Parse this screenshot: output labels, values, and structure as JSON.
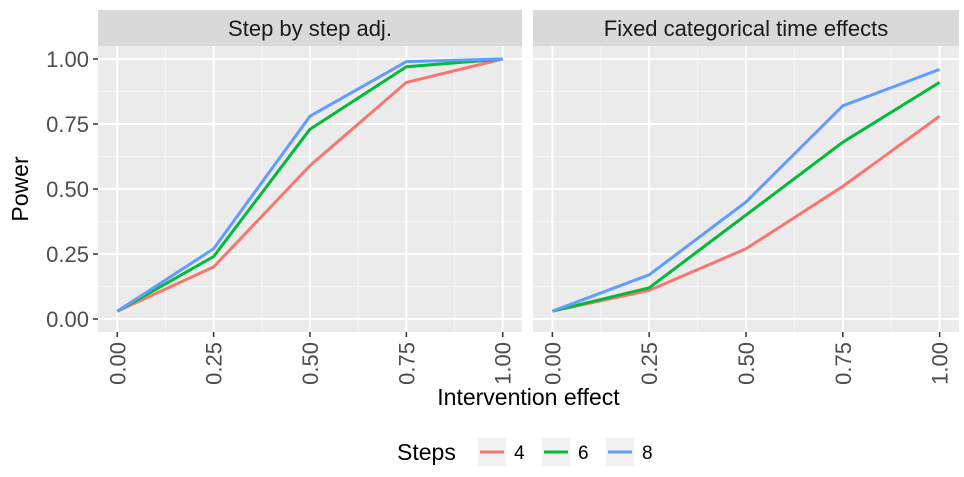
{
  "chart_data": {
    "type": "line",
    "facets": [
      {
        "title": "Step by step adj.",
        "x": [
          0.0,
          0.25,
          0.5,
          0.75,
          1.0
        ],
        "series": [
          {
            "name": "4",
            "values": [
              0.03,
              0.2,
              0.59,
              0.91,
              1.0
            ]
          },
          {
            "name": "6",
            "values": [
              0.03,
              0.24,
              0.73,
              0.97,
              1.0
            ]
          },
          {
            "name": "8",
            "values": [
              0.03,
              0.27,
              0.78,
              0.99,
              1.0
            ]
          }
        ]
      },
      {
        "title": "Fixed categorical time effects",
        "x": [
          0.0,
          0.25,
          0.5,
          0.75,
          1.0
        ],
        "series": [
          {
            "name": "4",
            "values": [
              0.03,
              0.11,
              0.27,
              0.51,
              0.78
            ]
          },
          {
            "name": "6",
            "values": [
              0.03,
              0.12,
              0.4,
              0.68,
              0.91
            ]
          },
          {
            "name": "8",
            "values": [
              0.03,
              0.17,
              0.45,
              0.82,
              0.96
            ]
          }
        ]
      }
    ],
    "xlabel": "Intervention effect",
    "ylabel": "Power",
    "x_ticks": [
      "0.00",
      "0.25",
      "0.50",
      "0.75",
      "1.00"
    ],
    "y_ticks": [
      "0.00",
      "0.25",
      "0.50",
      "0.75",
      "1.00"
    ],
    "y_tick_values": [
      0,
      0.25,
      0.5,
      0.75,
      1.0
    ],
    "x_tick_values": [
      0,
      0.25,
      0.5,
      0.75,
      1.0
    ],
    "xlim": [
      0,
      1
    ],
    "ylim": [
      0,
      1
    ],
    "grid": true,
    "legend": {
      "title": "Steps",
      "placement": "bottom",
      "entries": [
        "4",
        "6",
        "8"
      ]
    },
    "colors": {
      "4": "#F8766D",
      "6": "#00BA38",
      "8": "#619CFF"
    }
  }
}
